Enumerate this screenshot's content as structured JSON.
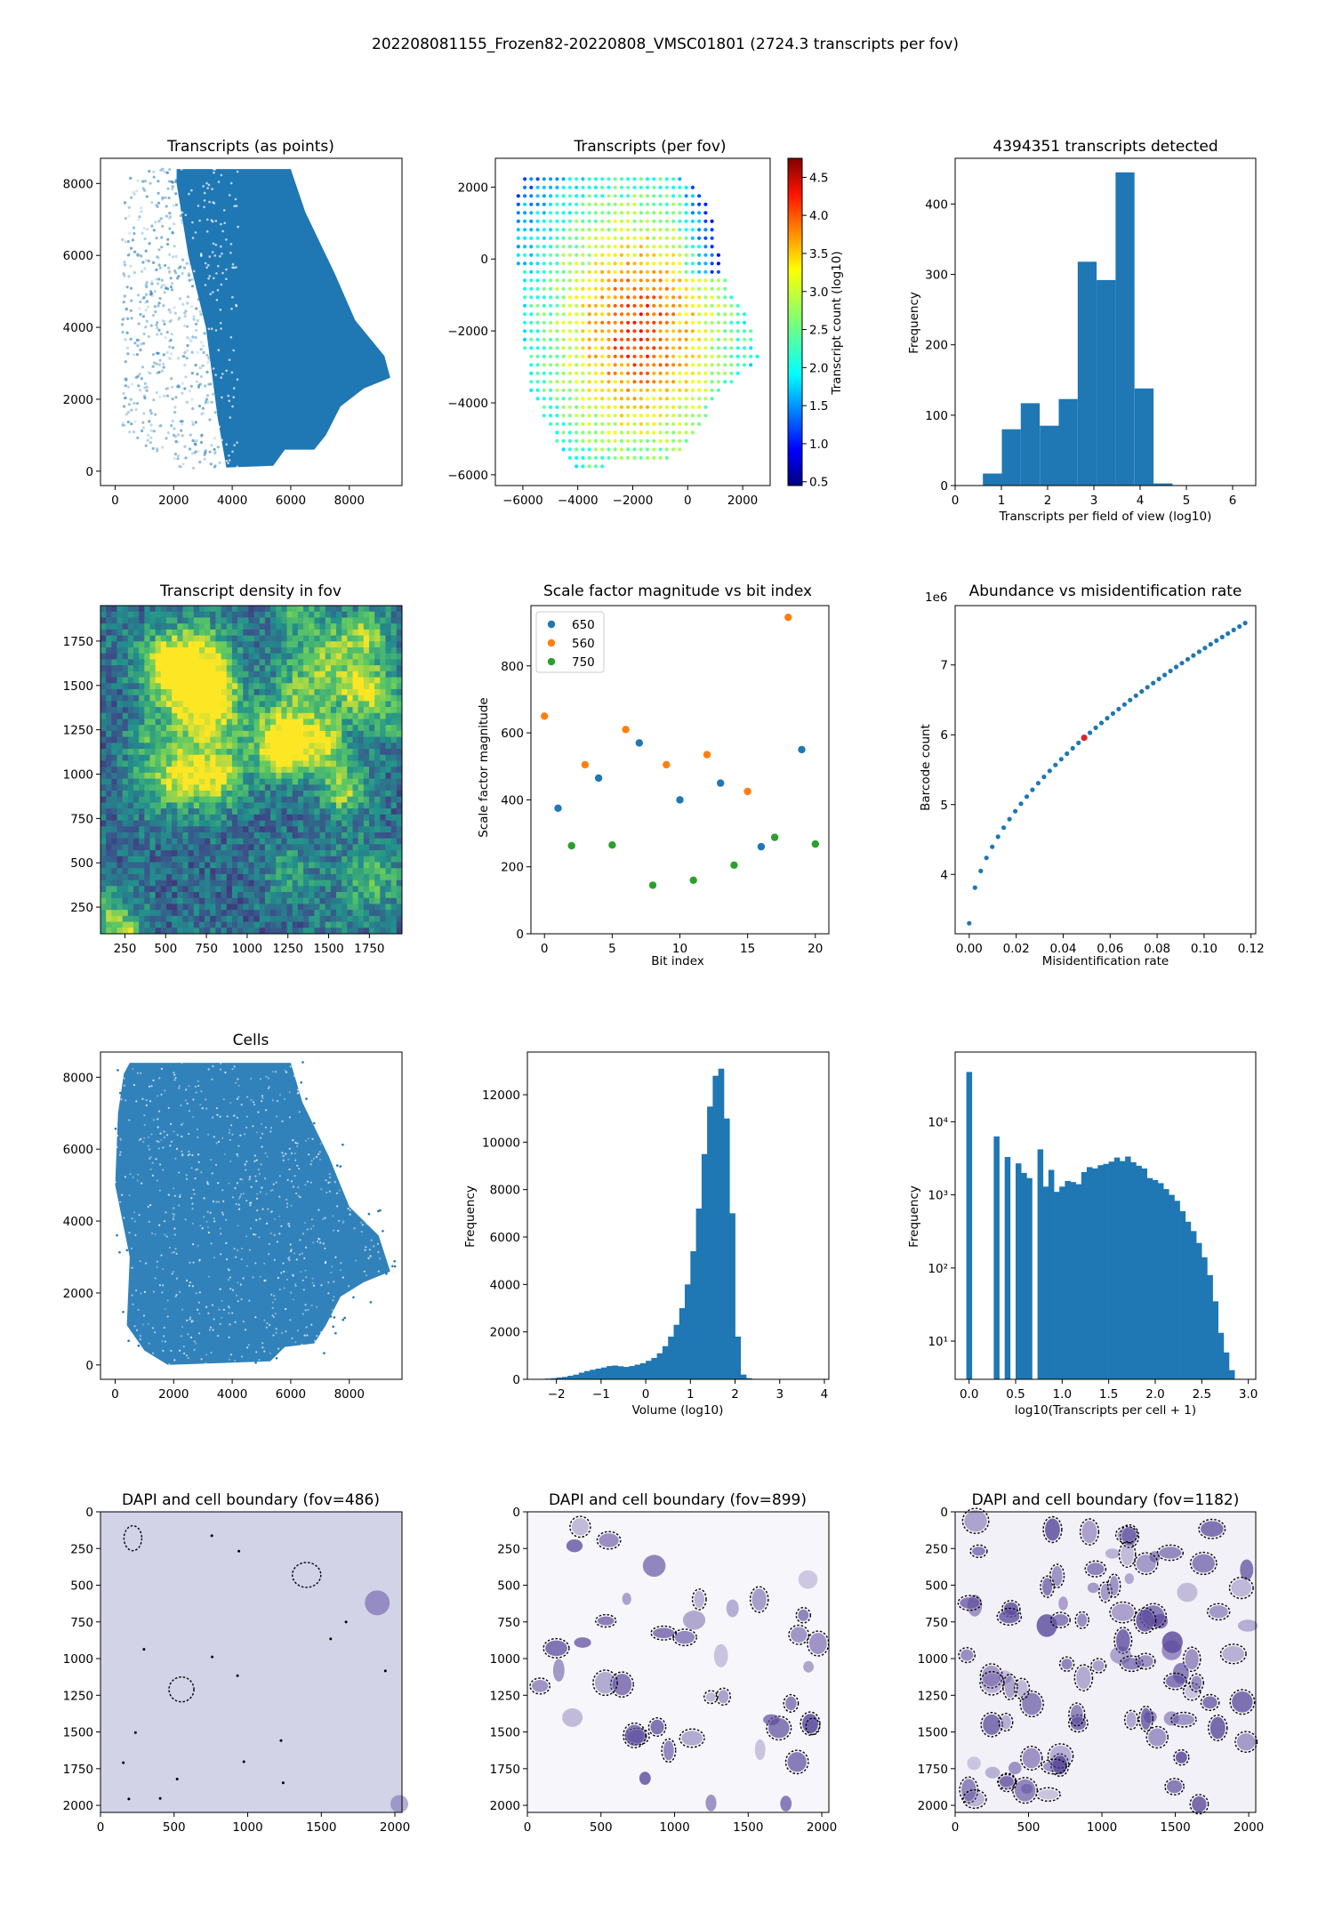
{
  "figure": {
    "suptitle": "202208081155_Frozen82-20220808_VMSC01801 (2724.3 transcripts per fov)"
  },
  "colors": {
    "blue": "#1f77b4",
    "orange": "#ff7f0e",
    "green": "#2ca02c",
    "viridis_low": "#31688e",
    "viridis_high": "#b5de2b",
    "dapi": "#5b4a9c"
  },
  "chart_data": [
    {
      "id": "transcripts_points",
      "type": "scatter",
      "title": "Transcripts (as points)",
      "xlabel": "",
      "ylabel": "",
      "xlim": [
        -500,
        9800
      ],
      "ylim": [
        -400,
        8700
      ],
      "xticks": [
        0,
        2000,
        4000,
        6000,
        8000
      ],
      "yticks": [
        0,
        2000,
        4000,
        6000,
        8000
      ],
      "outline": [
        [
          800,
          8400
        ],
        [
          6000,
          8400
        ],
        [
          6500,
          7200
        ],
        [
          7500,
          5500
        ],
        [
          8200,
          4200
        ],
        [
          9200,
          3200
        ],
        [
          9400,
          2600
        ],
        [
          8500,
          2300
        ],
        [
          7700,
          1800
        ],
        [
          7200,
          1000
        ],
        [
          6800,
          600
        ],
        [
          5800,
          600
        ],
        [
          5400,
          150
        ],
        [
          2300,
          0
        ],
        [
          1900,
          400
        ],
        [
          1000,
          700
        ],
        [
          200,
          1300
        ],
        [
          300,
          3000
        ],
        [
          100,
          5000
        ],
        [
          200,
          7000
        ],
        [
          300,
          8100
        ]
      ],
      "solid_outline": [
        [
          2100,
          8400
        ],
        [
          6000,
          8400
        ],
        [
          6500,
          7200
        ],
        [
          7500,
          5500
        ],
        [
          8200,
          4200
        ],
        [
          9200,
          3200
        ],
        [
          9400,
          2600
        ],
        [
          8500,
          2300
        ],
        [
          7700,
          1800
        ],
        [
          7200,
          1000
        ],
        [
          6800,
          600
        ],
        [
          5800,
          600
        ],
        [
          5400,
          150
        ],
        [
          3800,
          100
        ],
        [
          3500,
          1500
        ],
        [
          3100,
          4000
        ],
        [
          2500,
          6000
        ],
        [
          2100,
          8000
        ]
      ]
    },
    {
      "id": "transcripts_per_fov",
      "type": "scatter",
      "title": "Transcripts (per fov)",
      "xlim": [
        -7000,
        3000
      ],
      "ylim": [
        -6300,
        2800
      ],
      "xticks": [
        -6000,
        -4000,
        -2000,
        0,
        2000
      ],
      "yticks": [
        2000,
        0,
        -2000,
        -4000,
        -6000
      ],
      "grid_spacing": 235,
      "outline": [
        [
          -6000,
          2300
        ],
        [
          -500,
          2300
        ],
        [
          -200,
          2200
        ],
        [
          300,
          2000
        ],
        [
          800,
          1500
        ],
        [
          1000,
          800
        ],
        [
          1200,
          0
        ],
        [
          1600,
          -1000
        ],
        [
          2300,
          -1800
        ],
        [
          2600,
          -2800
        ],
        [
          1800,
          -3300
        ],
        [
          900,
          -4000
        ],
        [
          500,
          -4600
        ],
        [
          -100,
          -5200
        ],
        [
          -900,
          -5700
        ],
        [
          -4200,
          -5800
        ],
        [
          -4500,
          -5400
        ],
        [
          -5100,
          -4600
        ],
        [
          -5800,
          -3600
        ],
        [
          -6000,
          -2000
        ],
        [
          -6200,
          0
        ],
        [
          -6300,
          1500
        ]
      ],
      "colorbar": {
        "label": "Transcript count (log10)",
        "range": [
          0.45,
          4.75
        ],
        "ticks": [
          "0.5",
          "1.0",
          "1.5",
          "2.0",
          "2.5",
          "3.0",
          "3.5",
          "4.0",
          "4.5"
        ],
        "colormap": "jet"
      }
    },
    {
      "id": "transcripts_hist",
      "type": "bar",
      "title": "4394351 transcripts detected",
      "xlabel": "Transcripts per field of view (log10)",
      "ylabel": "Frequency",
      "xlim": [
        0,
        6.5
      ],
      "ylim": [
        0,
        465
      ],
      "xticks": [
        "0",
        "1",
        "2",
        "3",
        "4",
        "5",
        "6"
      ],
      "yticks": [
        "0",
        "100",
        "200",
        "300",
        "400"
      ],
      "bin_edges": [
        0.6,
        1.01,
        1.42,
        1.83,
        2.24,
        2.65,
        3.06,
        3.47,
        3.88,
        4.29,
        4.7,
        5.11,
        5.52
      ],
      "values": [
        17,
        80,
        117,
        85,
        123,
        318,
        292,
        445,
        138,
        3,
        0,
        0
      ]
    },
    {
      "id": "transcript_density",
      "type": "heatmap",
      "title": "Transcript density in fov",
      "xlim": [
        100,
        1950
      ],
      "ylim": [
        100,
        1950
      ],
      "xticks": [
        "250",
        "500",
        "750",
        "1000",
        "1250",
        "1500",
        "1750"
      ],
      "yticks": [
        "250",
        "500",
        "750",
        "1000",
        "1250",
        "1500",
        "1750"
      ],
      "colormap": "viridis"
    },
    {
      "id": "scale_factor",
      "type": "scatter",
      "title": "Scale factor magnitude vs bit index",
      "xlabel": "Bit index",
      "ylabel": "Scale factor magnitude",
      "xlim": [
        -1,
        21
      ],
      "ylim": [
        0,
        980
      ],
      "xticks": [
        0,
        5,
        10,
        15,
        20
      ],
      "yticks": [
        0,
        200,
        400,
        600,
        800
      ],
      "legend_position": "upper-left",
      "series": [
        {
          "name": "650",
          "x": [
            1,
            4,
            7,
            10,
            13,
            16,
            19
          ],
          "y": [
            375,
            465,
            570,
            400,
            450,
            260,
            550
          ]
        },
        {
          "name": "560",
          "x": [
            0,
            3,
            6,
            9,
            12,
            15,
            18
          ],
          "y": [
            650,
            505,
            610,
            505,
            535,
            425,
            945
          ]
        },
        {
          "name": "750",
          "x": [
            2,
            5,
            8,
            11,
            14,
            17,
            20
          ],
          "y": [
            263,
            265,
            145,
            160,
            205,
            288,
            268
          ]
        }
      ]
    },
    {
      "id": "abundance_vs_misid",
      "type": "scatter",
      "title": "Abundance vs misidentification rate",
      "xlabel": "Misidentification rate",
      "ylabel": "Barcode count",
      "y_offset_label": "1e6",
      "xlim": [
        -0.006,
        0.122
      ],
      "ylim": [
        3.15,
        7.85
      ],
      "xticks": [
        "0.00",
        "0.02",
        "0.04",
        "0.06",
        "0.08",
        "0.10",
        "0.12"
      ],
      "yticks": [
        "4",
        "5",
        "6",
        "7"
      ],
      "highlight_x": 0.05
    },
    {
      "id": "cells",
      "type": "scatter",
      "title": "Cells",
      "xlim": [
        -500,
        9800
      ],
      "ylim": [
        -400,
        8700
      ],
      "xticks": [
        0,
        2000,
        4000,
        6000,
        8000
      ],
      "yticks": [
        0,
        2000,
        4000,
        6000,
        8000
      ],
      "outline": [
        [
          500,
          8400
        ],
        [
          6000,
          8400
        ],
        [
          6400,
          7300
        ],
        [
          7300,
          5800
        ],
        [
          8000,
          4400
        ],
        [
          9000,
          3600
        ],
        [
          9400,
          2600
        ],
        [
          8500,
          2300
        ],
        [
          7700,
          1900
        ],
        [
          7200,
          1100
        ],
        [
          6800,
          600
        ],
        [
          5800,
          500
        ],
        [
          5300,
          100
        ],
        [
          1800,
          0
        ],
        [
          1000,
          400
        ],
        [
          400,
          1100
        ],
        [
          500,
          3000
        ],
        [
          0,
          5000
        ],
        [
          100,
          7000
        ],
        [
          300,
          8100
        ]
      ]
    },
    {
      "id": "volume_hist",
      "type": "bar",
      "title": "",
      "xlabel": "Volume (log10)",
      "ylabel": "Frequency",
      "xlim": [
        -2.65,
        4.1
      ],
      "ylim": [
        0,
        13800
      ],
      "xticks": [
        "−2",
        "−1",
        "0",
        "1",
        "2",
        "3",
        "4"
      ],
      "yticks": [
        "0",
        "2000",
        "4000",
        "6000",
        "8000",
        "10000",
        "12000"
      ],
      "bin_start": -2.5,
      "bin_width": 0.125,
      "values": [
        10,
        20,
        30,
        50,
        80,
        100,
        150,
        200,
        280,
        350,
        400,
        450,
        500,
        560,
        580,
        550,
        520,
        560,
        620,
        680,
        780,
        900,
        1100,
        1400,
        1800,
        2300,
        3000,
        4000,
        5400,
        7200,
        9500,
        11500,
        12800,
        13100,
        11000,
        7000,
        1800,
        200,
        50,
        10,
        5,
        2,
        1,
        1
      ]
    },
    {
      "id": "transcripts_per_cell_hist",
      "type": "bar",
      "title": "",
      "xlabel": "log10(Transcripts per cell + 1)",
      "ylabel": "Frequency",
      "y_scale": "log",
      "xlim": [
        -0.15,
        3.08
      ],
      "ylim": [
        3,
        90000
      ],
      "xticks": [
        "0.0",
        "0.5",
        "1.0",
        "1.5",
        "2.0",
        "2.5",
        "3.0"
      ],
      "yticks": [
        "10¹",
        "10²",
        "10³",
        "10⁴"
      ],
      "ytick_values": [
        10,
        100,
        1000,
        10000
      ],
      "bin_width": 0.0588,
      "values": [
        48000,
        0,
        0,
        0,
        0,
        6300,
        0,
        3300,
        0,
        2700,
        2000,
        1700,
        0,
        4200,
        1300,
        2200,
        1100,
        1300,
        1550,
        1500,
        1400,
        2050,
        2400,
        2300,
        2550,
        2650,
        2850,
        3250,
        2900,
        3350,
        2800,
        2500,
        2300,
        1700,
        1600,
        1450,
        1200,
        1000,
        830,
        600,
        430,
        320,
        220,
        140,
        80,
        35,
        13,
        7,
        4
      ]
    },
    {
      "id": "dapi_486",
      "type": "heatmap",
      "title": "DAPI and cell boundary (fov=486)",
      "xlim": [
        0,
        2048
      ],
      "ylim": [
        2048,
        0
      ],
      "xticks": [
        "0",
        "500",
        "1000",
        "1500",
        "2000"
      ],
      "yticks": [
        "0",
        "250",
        "500",
        "750",
        "1000",
        "1250",
        "1500",
        "1750",
        "2000"
      ]
    },
    {
      "id": "dapi_899",
      "type": "heatmap",
      "title": "DAPI and cell boundary (fov=899)",
      "xlim": [
        0,
        2048
      ],
      "ylim": [
        2048,
        0
      ],
      "xticks": [
        "0",
        "500",
        "1000",
        "1500",
        "2000"
      ],
      "yticks": [
        "0",
        "250",
        "500",
        "750",
        "1000",
        "1250",
        "1500",
        "1750",
        "2000"
      ]
    },
    {
      "id": "dapi_1182",
      "type": "heatmap",
      "title": "DAPI and cell boundary (fov=1182)",
      "xlim": [
        0,
        2048
      ],
      "ylim": [
        2048,
        0
      ],
      "xticks": [
        "0",
        "500",
        "1000",
        "1500",
        "2000"
      ],
      "yticks": [
        "0",
        "250",
        "500",
        "750",
        "1000",
        "1250",
        "1500",
        "1750",
        "2000"
      ]
    }
  ]
}
